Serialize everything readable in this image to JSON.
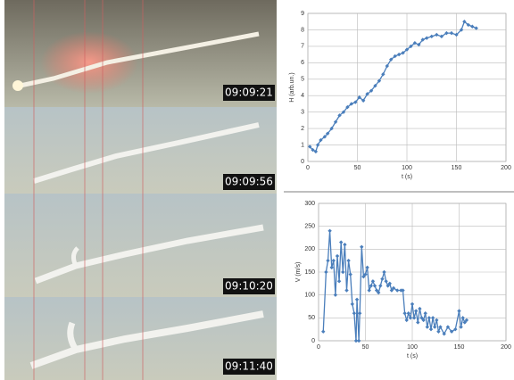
{
  "photos": {
    "timestamps": [
      "09:09:21",
      "09:09:56",
      "09:10:20",
      "09:11:40"
    ]
  },
  "chart_data": [
    {
      "type": "line",
      "xlabel": "t (s)",
      "ylabel": "H (arb.un.)",
      "xlim": [
        0,
        200
      ],
      "xticks": [
        0,
        50,
        100,
        150,
        200
      ],
      "ylim": [
        0,
        9
      ],
      "yticks": [
        0,
        1,
        2,
        3,
        4,
        5,
        6,
        7,
        8,
        9
      ],
      "grid": true,
      "x": [
        2,
        5,
        8,
        10,
        13,
        17,
        20,
        24,
        28,
        32,
        36,
        40,
        44,
        48,
        52,
        56,
        60,
        64,
        68,
        72,
        76,
        80,
        84,
        88,
        92,
        96,
        100,
        104,
        108,
        112,
        116,
        120,
        125,
        130,
        135,
        140,
        145,
        150,
        155,
        158,
        162,
        166,
        170
      ],
      "series": [
        {
          "color": "#4a7ebb",
          "values": [
            0.9,
            0.7,
            0.6,
            1.0,
            1.3,
            1.5,
            1.7,
            2.0,
            2.4,
            2.8,
            3.0,
            3.3,
            3.5,
            3.6,
            3.9,
            3.7,
            4.1,
            4.3,
            4.6,
            4.9,
            5.3,
            5.8,
            6.2,
            6.4,
            6.5,
            6.6,
            6.8,
            7.0,
            7.2,
            7.1,
            7.4,
            7.5,
            7.6,
            7.7,
            7.6,
            7.8,
            7.8,
            7.7,
            8.0,
            8.5,
            8.3,
            8.2,
            8.1
          ]
        }
      ]
    },
    {
      "type": "line",
      "xlabel": "t (s)",
      "ylabel": "V (m/s)",
      "xlim": [
        0,
        200
      ],
      "xticks": [
        0,
        50,
        100,
        150,
        200
      ],
      "ylim": [
        0,
        300
      ],
      "yticks": [
        0,
        50,
        100,
        150,
        200,
        250,
        300
      ],
      "grid": true,
      "x": [
        5,
        8,
        10,
        12,
        14,
        16,
        18,
        20,
        22,
        24,
        26,
        28,
        30,
        32,
        34,
        36,
        38,
        40,
        41,
        43,
        44,
        46,
        48,
        50,
        52,
        54,
        56,
        58,
        60,
        62,
        64,
        66,
        68,
        70,
        72,
        74,
        76,
        78,
        80,
        84,
        88,
        90,
        92,
        94,
        96,
        98,
        100,
        102,
        104,
        106,
        108,
        110,
        112,
        114,
        116,
        118,
        120,
        122,
        124,
        126,
        128,
        130,
        134,
        138,
        142,
        146,
        150,
        152,
        154,
        156,
        158
      ],
      "series": [
        {
          "color": "#4a7ebb",
          "values": [
            20,
            150,
            175,
            240,
            160,
            175,
            100,
            185,
            130,
            215,
            150,
            210,
            110,
            175,
            145,
            80,
            60,
            0,
            90,
            0,
            60,
            205,
            140,
            145,
            160,
            110,
            120,
            130,
            120,
            110,
            105,
            120,
            135,
            150,
            130,
            120,
            125,
            110,
            115,
            110,
            110,
            110,
            60,
            45,
            60,
            50,
            80,
            50,
            65,
            40,
            70,
            50,
            45,
            60,
            30,
            50,
            25,
            50,
            30,
            45,
            20,
            30,
            15,
            30,
            20,
            25,
            65,
            30,
            50,
            40,
            45
          ]
        }
      ]
    }
  ]
}
